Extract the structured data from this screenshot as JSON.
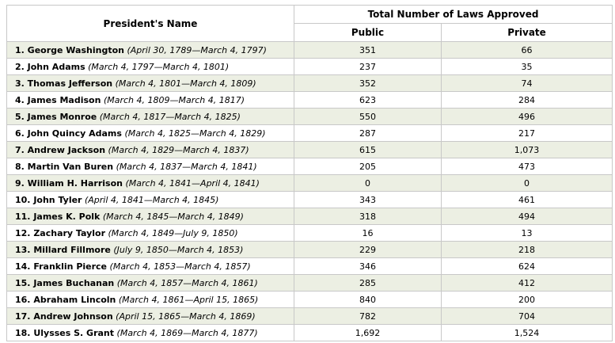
{
  "header": {
    "name_col": "President's Name",
    "group": "Total Number of Laws Approved",
    "public": "Public",
    "private": "Private"
  },
  "rows": [
    {
      "name": "1. George Washington",
      "term": "(April 30, 1789—March 4, 1797)",
      "public": "351",
      "private": "66"
    },
    {
      "name": "2. John Adams",
      "term": "(March 4, 1797—March 4, 1801)",
      "public": "237",
      "private": "35"
    },
    {
      "name": "3. Thomas Jefferson",
      "term": "(March 4, 1801—March 4, 1809)",
      "public": "352",
      "private": "74"
    },
    {
      "name": "4. James Madison",
      "term": "(March 4, 1809—March 4, 1817)",
      "public": "623",
      "private": "284"
    },
    {
      "name": "5. James Monroe",
      "term": "(March 4, 1817—March 4, 1825)",
      "public": "550",
      "private": "496"
    },
    {
      "name": "6. John Quincy Adams",
      "term": "(March 4, 1825—March 4, 1829)",
      "public": "287",
      "private": "217"
    },
    {
      "name": "7. Andrew Jackson",
      "term": "(March 4, 1829—March 4, 1837)",
      "public": "615",
      "private": "1,073"
    },
    {
      "name": "8. Martin Van Buren",
      "term": "(March 4, 1837—March 4, 1841)",
      "public": "205",
      "private": "473"
    },
    {
      "name": "9. William H. Harrison",
      "term": "(March 4, 1841—April 4, 1841)",
      "public": "0",
      "private": "0"
    },
    {
      "name": "10. John Tyler",
      "term": "(April 4, 1841—March 4, 1845)",
      "public": "343",
      "private": "461"
    },
    {
      "name": "11. James K. Polk",
      "term": "(March 4, 1845—March 4, 1849)",
      "public": "318",
      "private": "494"
    },
    {
      "name": "12. Zachary Taylor",
      "term": "(March 4, 1849—July 9, 1850)",
      "public": "16",
      "private": "13"
    },
    {
      "name": "13. Millard Fillmore",
      "term": "(July 9, 1850—March 4, 1853)",
      "public": "229",
      "private": "218"
    },
    {
      "name": "14. Franklin Pierce",
      "term": "(March 4, 1853—March 4, 1857)",
      "public": "346",
      "private": "624"
    },
    {
      "name": "15. James Buchanan",
      "term": "(March 4, 1857—March 4, 1861)",
      "public": "285",
      "private": "412"
    },
    {
      "name": "16. Abraham Lincoln",
      "term": "(March 4, 1861—April 15, 1865)",
      "public": "840",
      "private": "200"
    },
    {
      "name": "17. Andrew Johnson",
      "term": "(April 15, 1865—March 4, 1869)",
      "public": "782",
      "private": "704"
    },
    {
      "name": "18. Ulysses S. Grant",
      "term": "(March 4, 1869—March 4, 1877)",
      "public": "1,692",
      "private": "1,524"
    }
  ]
}
